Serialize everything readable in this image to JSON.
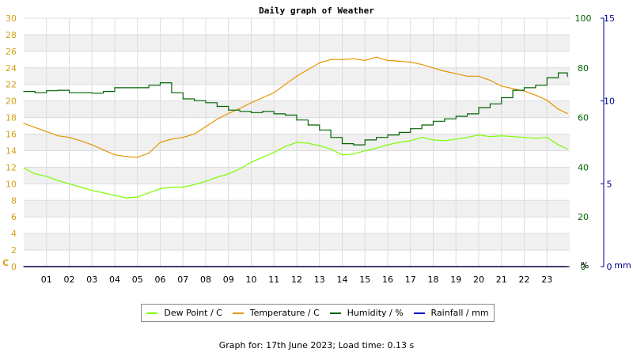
{
  "chart_data": {
    "type": "line",
    "title": "Daily graph of Weather",
    "x_ticks": [
      "01",
      "02",
      "03",
      "04",
      "05",
      "06",
      "07",
      "08",
      "09",
      "10",
      "11",
      "12",
      "13",
      "14",
      "15",
      "16",
      "17",
      "18",
      "19",
      "20",
      "21",
      "22",
      "23"
    ],
    "x_range": [
      0,
      24
    ],
    "axes": {
      "left": {
        "unit_label": "C",
        "range": [
          0,
          30
        ],
        "ticks": [
          0,
          2,
          4,
          6,
          8,
          10,
          12,
          14,
          16,
          18,
          20,
          22,
          24,
          26,
          28,
          30
        ],
        "color": "#d4a017"
      },
      "right1": {
        "unit_label": "%",
        "range": [
          0,
          100
        ],
        "ticks": [
          0,
          20,
          40,
          60,
          80,
          100
        ],
        "color": "#006400"
      },
      "right2": {
        "unit_label": "mm",
        "range": [
          0,
          15
        ],
        "ticks": [
          0,
          5,
          10,
          15
        ],
        "color": "#00008b"
      }
    },
    "grid": true,
    "legend_position": "bottom",
    "series": [
      {
        "name": "Dew Point / C",
        "axis": "left",
        "color": "#7cfc00",
        "x": [
          0,
          0.5,
          1,
          1.5,
          2,
          2.5,
          3,
          3.5,
          4,
          4.5,
          5,
          5.5,
          6,
          6.5,
          7,
          7.5,
          8,
          8.5,
          9,
          9.5,
          10,
          10.5,
          11,
          11.5,
          12,
          12.5,
          13,
          13.5,
          14,
          14.5,
          15,
          15.5,
          16,
          16.5,
          17,
          17.5,
          18,
          18.5,
          19,
          19.5,
          20,
          20.5,
          21,
          21.5,
          22,
          22.5,
          23,
          23.5,
          23.9
        ],
        "y": [
          11.9,
          11.2,
          10.9,
          10.4,
          10.0,
          9.6,
          9.2,
          8.9,
          8.6,
          8.3,
          8.4,
          8.9,
          9.4,
          9.6,
          9.6,
          9.9,
          10.3,
          10.8,
          11.2,
          11.8,
          12.6,
          13.2,
          13.8,
          14.5,
          15.0,
          14.9,
          14.6,
          14.2,
          13.5,
          13.6,
          14.0,
          14.3,
          14.7,
          15.0,
          15.2,
          15.6,
          15.3,
          15.2,
          15.4,
          15.6,
          15.9,
          15.7,
          15.8,
          15.7,
          15.6,
          15.5,
          15.6,
          14.7,
          14.2
        ]
      },
      {
        "name": "Temperature / C",
        "axis": "left",
        "color": "#e69500",
        "x": [
          0,
          0.5,
          1,
          1.5,
          2,
          2.5,
          3,
          3.5,
          4,
          4.5,
          5,
          5.5,
          6,
          6.5,
          7,
          7.5,
          8,
          8.5,
          9,
          9.5,
          10,
          10.5,
          11,
          11.5,
          12,
          12.5,
          13,
          13.5,
          14,
          14.5,
          15,
          15.5,
          16,
          16.5,
          17,
          17.5,
          18,
          18.5,
          19,
          19.5,
          20,
          20.5,
          21,
          21.5,
          22,
          22.5,
          23,
          23.5,
          23.9
        ],
        "y": [
          17.3,
          16.8,
          16.3,
          15.8,
          15.6,
          15.2,
          14.7,
          14.1,
          13.5,
          13.3,
          13.2,
          13.7,
          15.0,
          15.4,
          15.6,
          16.0,
          16.9,
          17.8,
          18.5,
          19.1,
          19.8,
          20.4,
          21.0,
          22.0,
          23.0,
          23.8,
          24.6,
          25.0,
          25.0,
          25.1,
          24.9,
          25.3,
          24.9,
          24.8,
          24.7,
          24.4,
          24.0,
          23.6,
          23.3,
          23.0,
          23.0,
          22.5,
          21.8,
          21.5,
          21.2,
          20.7,
          20.1,
          19.0,
          18.5
        ]
      },
      {
        "name": "Humidity / %",
        "axis": "right1",
        "color": "#006400",
        "x": [
          0,
          0.5,
          1,
          1.5,
          2,
          2.5,
          3,
          3.5,
          4,
          4.5,
          5,
          5.5,
          6,
          6.5,
          7,
          7.5,
          8,
          8.5,
          9,
          9.5,
          10,
          10.5,
          11,
          11.5,
          12,
          12.5,
          13,
          13.5,
          14,
          14.5,
          15,
          15.5,
          16,
          16.5,
          17,
          17.5,
          18,
          18.5,
          19,
          19.5,
          20,
          20.5,
          21,
          21.5,
          22,
          22.5,
          23,
          23.5,
          23.9
        ],
        "y": [
          70.5,
          70,
          70.8,
          71,
          70,
          70,
          69.8,
          70.5,
          72,
          72,
          72,
          73,
          74,
          70,
          67.5,
          66.8,
          66,
          64.5,
          63,
          62.5,
          62,
          62.5,
          61.5,
          61,
          59,
          57,
          55,
          52,
          49.5,
          49,
          51,
          52,
          53,
          54,
          55.5,
          57,
          58.5,
          59.5,
          60.5,
          61.5,
          64,
          65.5,
          68,
          71,
          72,
          73,
          76,
          78,
          76.5
        ]
      },
      {
        "name": "Rainfall / mm",
        "axis": "right2",
        "color": "#0000cd",
        "x": [
          0,
          23.9
        ],
        "y": [
          0,
          0
        ]
      }
    ]
  },
  "footer_text": "Graph for: 17th June 2023; Load time: 0.13 s"
}
